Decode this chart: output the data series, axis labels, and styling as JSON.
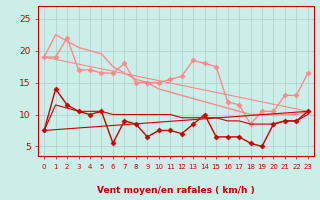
{
  "background_color": "#cceee8",
  "grid_color": "#aacccc",
  "x_labels": [
    "0",
    "1",
    "2",
    "3",
    "4",
    "5",
    "6",
    "7",
    "8",
    "9",
    "10",
    "11",
    "12",
    "13",
    "14",
    "15",
    "16",
    "17",
    "18",
    "19",
    "20",
    "21",
    "22",
    "23"
  ],
  "xlabel": "Vent moyen/en rafales ( km/h )",
  "yticks": [
    5,
    10,
    15,
    20,
    25
  ],
  "ylim": [
    3.5,
    27
  ],
  "xlim": [
    -0.5,
    23.5
  ],
  "line1_x": [
    0,
    1,
    2,
    3,
    4,
    5,
    6,
    7,
    8,
    9,
    10,
    11,
    12,
    13,
    14,
    15,
    16,
    17,
    18,
    19,
    20,
    21,
    22,
    23
  ],
  "line1_y": [
    19.0,
    19.0,
    22.0,
    17.0,
    17.0,
    16.5,
    16.5,
    18.0,
    15.0,
    15.0,
    15.0,
    15.5,
    16.0,
    18.5,
    18.0,
    17.5,
    12.0,
    11.5,
    8.5,
    10.5,
    10.5,
    13.0,
    13.0,
    16.5
  ],
  "line1_color": "#ff8888",
  "line1_marker": "D",
  "line1_markersize": 2.5,
  "line1_lw": 1.0,
  "line2_x": [
    0,
    1,
    2,
    3,
    4,
    5,
    6,
    7,
    8,
    9,
    10,
    11,
    12,
    13,
    14,
    15,
    16,
    17,
    18,
    19,
    20,
    21,
    22,
    23
  ],
  "line2_y": [
    19.0,
    22.5,
    21.5,
    20.5,
    20.0,
    19.5,
    17.5,
    16.5,
    15.5,
    15.0,
    14.0,
    13.5,
    13.0,
    12.5,
    12.0,
    11.5,
    11.0,
    10.5,
    10.0,
    10.0,
    10.0,
    10.0,
    10.0,
    10.5
  ],
  "line2_color": "#ff8888",
  "line2_lw": 1.0,
  "line3_x": [
    0,
    23
  ],
  "line3_y": [
    19.0,
    10.5
  ],
  "line3_color": "#ff8888",
  "line3_lw": 0.8,
  "line4_x": [
    0,
    1,
    2,
    3,
    4,
    5,
    6,
    7,
    8,
    9,
    10,
    11,
    12,
    13,
    14,
    15,
    16,
    17,
    18,
    19,
    20,
    21,
    22,
    23
  ],
  "line4_y": [
    7.5,
    14.0,
    11.5,
    10.5,
    10.0,
    10.5,
    5.5,
    9.0,
    8.5,
    6.5,
    7.5,
    7.5,
    7.0,
    8.5,
    10.0,
    6.5,
    6.5,
    6.5,
    5.5,
    5.0,
    8.5,
    9.0,
    9.0,
    10.5
  ],
  "line4_color": "#cc0000",
  "line4_marker": "D",
  "line4_markersize": 2.5,
  "line4_lw": 1.0,
  "line5_x": [
    0,
    1,
    2,
    3,
    4,
    5,
    6,
    7,
    8,
    9,
    10,
    11,
    12,
    13,
    14,
    15,
    16,
    17,
    18,
    19,
    20,
    21,
    22,
    23
  ],
  "line5_y": [
    7.5,
    11.5,
    11.0,
    10.5,
    10.5,
    10.5,
    10.0,
    10.0,
    10.0,
    10.0,
    10.0,
    10.0,
    9.5,
    9.5,
    9.5,
    9.5,
    9.0,
    9.0,
    8.5,
    8.5,
    8.5,
    9.0,
    9.0,
    10.0
  ],
  "line5_color": "#cc0000",
  "line5_lw": 0.8,
  "line6_x": [
    0,
    23
  ],
  "line6_y": [
    7.5,
    10.5
  ],
  "line6_color": "#cc0000",
  "line6_lw": 0.8,
  "wind_arrows": [
    "↙",
    "↙",
    "←",
    "↑",
    "↑",
    "↗",
    "↗",
    "↑",
    "↑",
    "↑",
    "↗",
    "→",
    "↗",
    "↗",
    "↗",
    "↗",
    "→",
    "→",
    "↘",
    "↗",
    "↗",
    "↗",
    "↗",
    "↗"
  ]
}
